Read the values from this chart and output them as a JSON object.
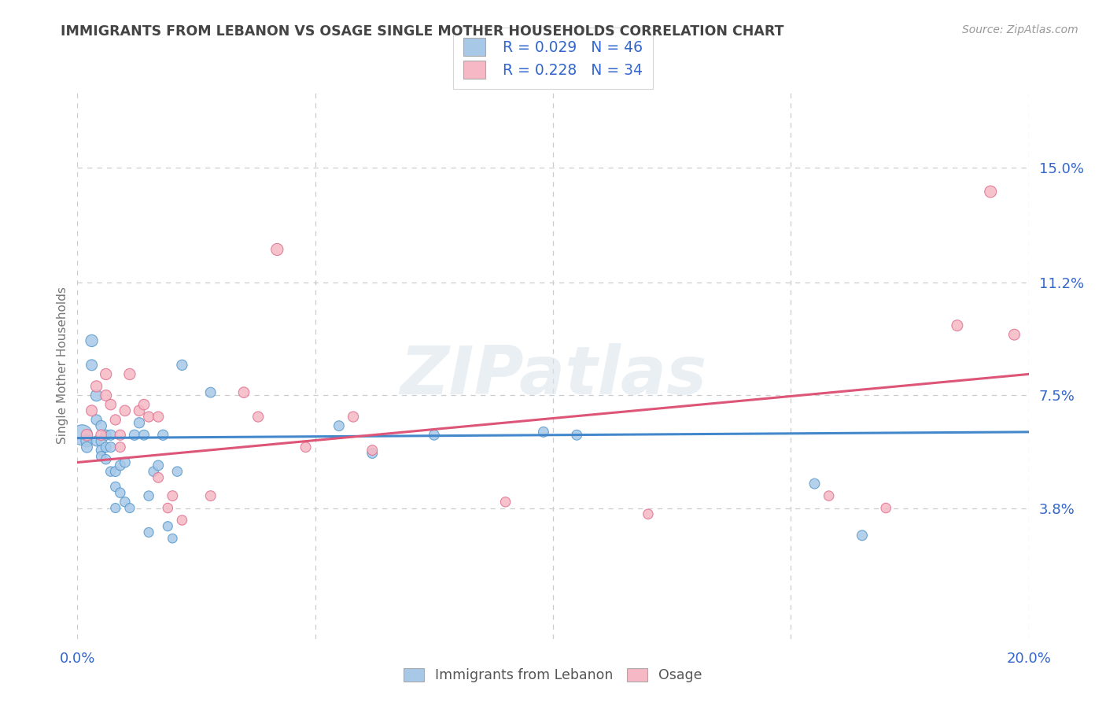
{
  "title": "IMMIGRANTS FROM LEBANON VS OSAGE SINGLE MOTHER HOUSEHOLDS CORRELATION CHART",
  "source": "Source: ZipAtlas.com",
  "ylabel": "Single Mother Households",
  "xlim": [
    0.0,
    0.2
  ],
  "ylim": [
    -0.005,
    0.175
  ],
  "ytick_positions": [
    0.038,
    0.075,
    0.112,
    0.15
  ],
  "ytick_labels": [
    "3.8%",
    "7.5%",
    "11.2%",
    "15.0%"
  ],
  "legend_labels": [
    "Immigrants from Lebanon",
    "Osage"
  ],
  "legend_r_values": [
    "R = 0.029",
    "R = 0.228"
  ],
  "legend_n_values": [
    "N = 46",
    "N = 34"
  ],
  "blue_color": "#a8c8e8",
  "pink_color": "#f5b8c4",
  "blue_edge_color": "#5599cc",
  "pink_edge_color": "#e07090",
  "blue_line_color": "#4488cc",
  "pink_line_color": "#dd5577",
  "text_color": "#3366cc",
  "title_color": "#444444",
  "watermark": "ZIPatlas",
  "background_color": "#ffffff",
  "grid_color": "#cccccc",
  "blue_scatter_x": [
    0.001,
    0.002,
    0.002,
    0.003,
    0.003,
    0.004,
    0.004,
    0.004,
    0.005,
    0.005,
    0.005,
    0.005,
    0.006,
    0.006,
    0.006,
    0.007,
    0.007,
    0.007,
    0.008,
    0.008,
    0.008,
    0.009,
    0.009,
    0.01,
    0.01,
    0.011,
    0.012,
    0.013,
    0.014,
    0.015,
    0.015,
    0.016,
    0.017,
    0.018,
    0.019,
    0.02,
    0.021,
    0.022,
    0.028,
    0.055,
    0.062,
    0.075,
    0.098,
    0.105,
    0.155,
    0.165
  ],
  "blue_scatter_y": [
    0.062,
    0.06,
    0.058,
    0.093,
    0.085,
    0.075,
    0.067,
    0.06,
    0.065,
    0.06,
    0.057,
    0.055,
    0.062,
    0.058,
    0.054,
    0.062,
    0.058,
    0.05,
    0.05,
    0.045,
    0.038,
    0.052,
    0.043,
    0.053,
    0.04,
    0.038,
    0.062,
    0.066,
    0.062,
    0.042,
    0.03,
    0.05,
    0.052,
    0.062,
    0.032,
    0.028,
    0.05,
    0.085,
    0.076,
    0.065,
    0.056,
    0.062,
    0.063,
    0.062,
    0.046,
    0.029
  ],
  "pink_scatter_x": [
    0.002,
    0.003,
    0.004,
    0.005,
    0.006,
    0.006,
    0.007,
    0.008,
    0.009,
    0.009,
    0.01,
    0.011,
    0.013,
    0.014,
    0.015,
    0.017,
    0.017,
    0.019,
    0.02,
    0.022,
    0.028,
    0.035,
    0.038,
    0.042,
    0.048,
    0.058,
    0.062,
    0.09,
    0.12,
    0.158,
    0.17,
    0.185,
    0.192,
    0.197
  ],
  "pink_scatter_y": [
    0.062,
    0.07,
    0.078,
    0.062,
    0.082,
    0.075,
    0.072,
    0.067,
    0.062,
    0.058,
    0.07,
    0.082,
    0.07,
    0.072,
    0.068,
    0.068,
    0.048,
    0.038,
    0.042,
    0.034,
    0.042,
    0.076,
    0.068,
    0.123,
    0.058,
    0.068,
    0.057,
    0.04,
    0.036,
    0.042,
    0.038,
    0.098,
    0.142,
    0.095
  ],
  "blue_trend_x": [
    0.0,
    0.2
  ],
  "blue_trend_y": [
    0.061,
    0.063
  ],
  "pink_trend_x": [
    0.0,
    0.2
  ],
  "pink_trend_y": [
    0.053,
    0.082
  ],
  "blue_sizes": [
    350,
    120,
    100,
    120,
    100,
    110,
    90,
    85,
    95,
    90,
    85,
    80,
    90,
    85,
    80,
    90,
    85,
    80,
    85,
    80,
    75,
    85,
    80,
    85,
    80,
    75,
    90,
    90,
    85,
    80,
    75,
    80,
    85,
    90,
    75,
    70,
    80,
    90,
    85,
    85,
    85,
    85,
    85,
    85,
    85,
    85
  ],
  "pink_sizes": [
    110,
    100,
    105,
    95,
    105,
    100,
    95,
    90,
    90,
    85,
    95,
    105,
    95,
    95,
    90,
    90,
    85,
    80,
    85,
    80,
    85,
    95,
    90,
    120,
    85,
    90,
    85,
    80,
    80,
    80,
    80,
    100,
    115,
    100
  ]
}
